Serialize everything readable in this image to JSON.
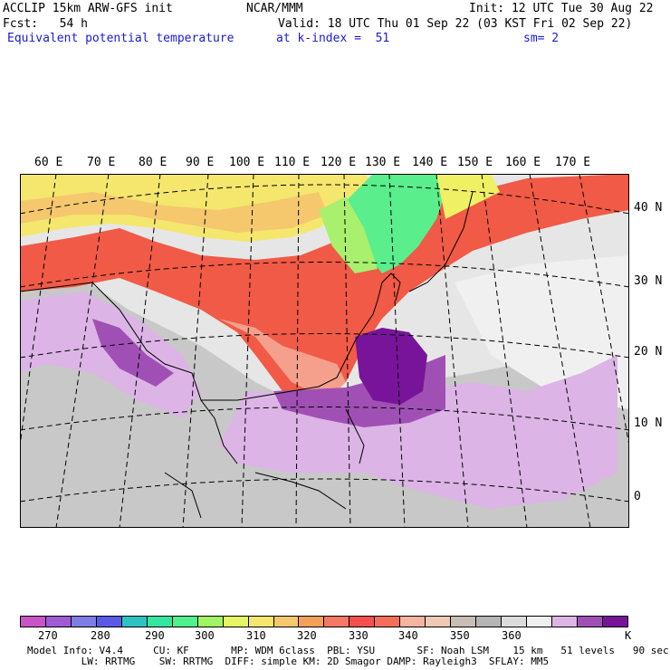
{
  "header": {
    "model": "ACCLIP 15km ARW-GFS init",
    "org": "NCAR/MMM",
    "init": "Init: 12 UTC Tue 30 Aug 22",
    "fcst": "Fcst:   54 h",
    "valid": "Valid: 18 UTC Thu 01 Sep 22 (03 KST Fri 02 Sep 22)",
    "field": "Equivalent potential temperature",
    "level": "at k-index =  51",
    "smooth": "sm= 2"
  },
  "map": {
    "lon_labels": [
      "60 E",
      "70 E",
      "80 E",
      "90 E",
      "100 E",
      "110 E",
      "120 E",
      "130 E",
      "140 E",
      "150 E",
      "160 E",
      "170 E"
    ],
    "lat_labels": [
      "40 N",
      "30 N",
      "20 N",
      "10 N",
      "0"
    ]
  },
  "colorbar": {
    "colors": [
      "#c855c8",
      "#a05ad2",
      "#7d7de6",
      "#5a5ae6",
      "#2dc3c3",
      "#32e6a0",
      "#50f08c",
      "#a0f564",
      "#e6f564",
      "#f5e66e",
      "#f5c86e",
      "#f5a05a",
      "#f57864",
      "#f55050",
      "#f56e5a",
      "#f5b4a0",
      "#f0c8b4",
      "#c8beb4",
      "#b4b4b4",
      "#dcdcdc",
      "#f0f0f0",
      "#dcb4e6",
      "#a050b4",
      "#78149a"
    ],
    "labels": [
      "270",
      "280",
      "290",
      "300",
      "310",
      "320",
      "330",
      "340",
      "350",
      "360",
      "K"
    ]
  },
  "footer": {
    "line1": "Model Info: V4.4     CU: KF       MP: WDM 6class  PBL: YSU       SF: Noah LSM    15 km   51 levels   90 sec",
    "line2": "         LW: RRTMG    SW: RRTMG  DIFF: simple KM: 2D Smagor DAMP: Rayleigh3  SFLAY: MM5"
  }
}
